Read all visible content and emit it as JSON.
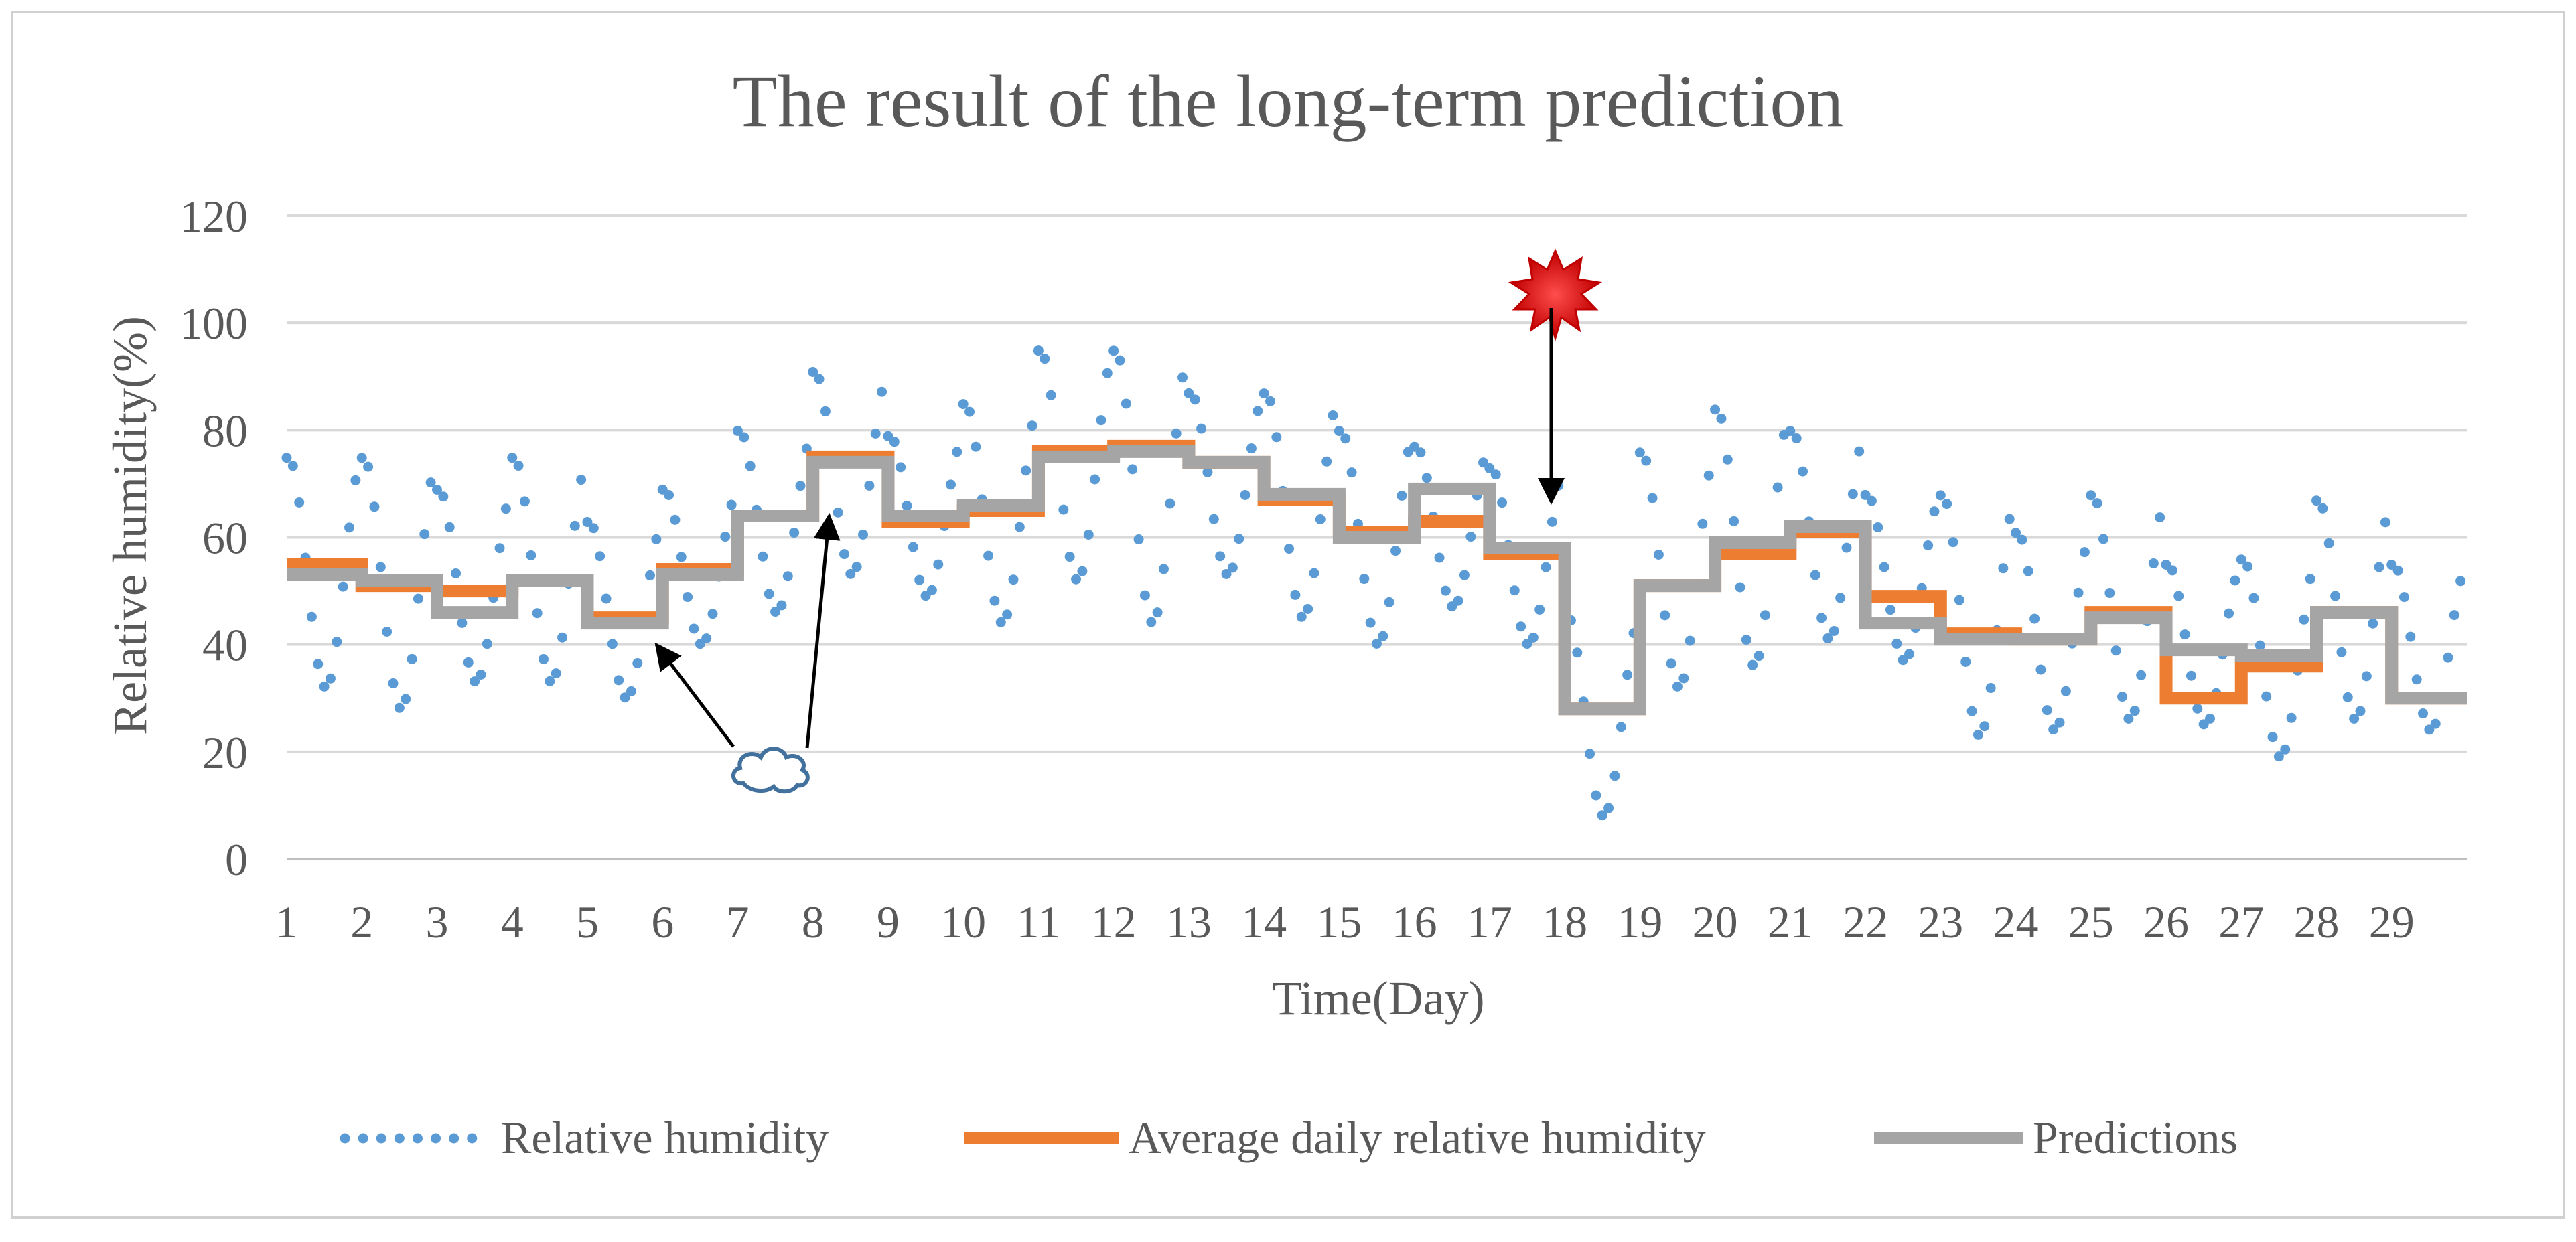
{
  "chart_data": {
    "type": "line",
    "title": "The result of the long-term prediction",
    "xlabel": "Time(Day)",
    "ylabel": "Relative humidity(%)",
    "ylim": [
      0,
      120
    ],
    "yticks": [
      0,
      20,
      40,
      60,
      80,
      100,
      120
    ],
    "xlim": [
      1,
      30
    ],
    "xticks": [
      1,
      2,
      3,
      4,
      5,
      6,
      7,
      8,
      9,
      10,
      11,
      12,
      13,
      14,
      15,
      16,
      17,
      18,
      19,
      20,
      21,
      22,
      23,
      24,
      25,
      26,
      27,
      28,
      29
    ],
    "grid": "horizontal",
    "legend_position": "bottom",
    "series": [
      {
        "name": "Relative humidity",
        "style": "dotted",
        "color": "#5B9BD5",
        "day_profiles": [
          {
            "min": 32,
            "max": 75
          },
          {
            "min": 28,
            "max": 75
          },
          {
            "min": 33,
            "max": 69
          },
          {
            "min": 33,
            "max": 75
          },
          {
            "min": 30,
            "max": 63
          },
          {
            "min": 40,
            "max": 69
          },
          {
            "min": 46,
            "max": 80
          },
          {
            "min": 53,
            "max": 91
          },
          {
            "min": 49,
            "max": 79
          },
          {
            "min": 44,
            "max": 85
          },
          {
            "min": 52,
            "max": 95
          },
          {
            "min": 44,
            "max": 95
          },
          {
            "min": 53,
            "max": 87
          },
          {
            "min": 45,
            "max": 87
          },
          {
            "min": 40,
            "max": 80
          },
          {
            "min": 47,
            "max": 77
          },
          {
            "min": 40,
            "max": 73
          },
          {
            "min": 8,
            "max": 46
          },
          {
            "min": 32,
            "max": 76
          },
          {
            "min": 36,
            "max": 84
          },
          {
            "min": 41,
            "max": 80
          },
          {
            "min": 37,
            "max": 68
          },
          {
            "min": 23,
            "max": 68
          },
          {
            "min": 24,
            "max": 61
          },
          {
            "min": 26,
            "max": 68
          },
          {
            "min": 25,
            "max": 55
          },
          {
            "min": 19,
            "max": 56
          },
          {
            "min": 26,
            "max": 67
          },
          {
            "min": 24,
            "max": 55
          }
        ]
      },
      {
        "name": "Average daily relative humidity",
        "style": "step",
        "color": "#ED7D31",
        "values": [
          55,
          51,
          50,
          52,
          45,
          54,
          64,
          75,
          63,
          65,
          76,
          77,
          74,
          67,
          61,
          63,
          57,
          28,
          51,
          57,
          61,
          49,
          42,
          41,
          46,
          30,
          36,
          46,
          30
        ]
      },
      {
        "name": "Predictions",
        "style": "step",
        "color": "#A5A5A5",
        "values": [
          53,
          52,
          46,
          52,
          44,
          53,
          64,
          74,
          64,
          66,
          75,
          76,
          74,
          68,
          60,
          69,
          58,
          28,
          51,
          59,
          62,
          44,
          41,
          41,
          45,
          39,
          38,
          46,
          30
        ]
      }
    ],
    "annotations": [
      {
        "type": "cloud-icon",
        "meaning": "cloudy weather",
        "arrows_to_days": [
          6,
          8
        ]
      },
      {
        "type": "sun-icon",
        "meaning": "sunny weather",
        "arrow_to_day": 18
      }
    ]
  }
}
